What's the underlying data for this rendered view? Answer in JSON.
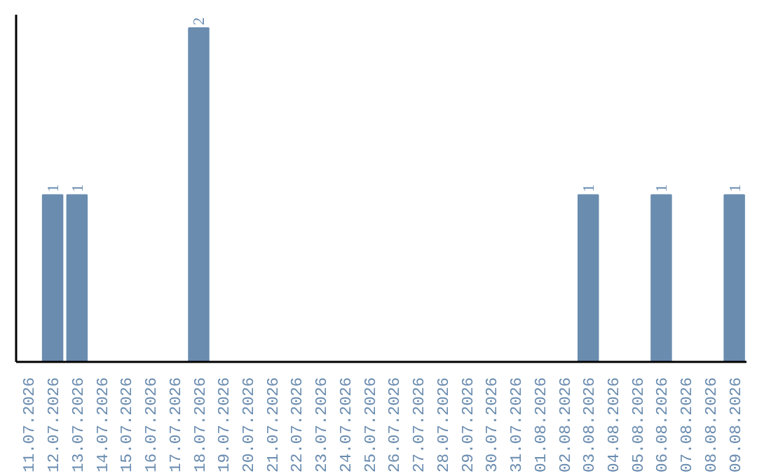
{
  "chart_data": {
    "type": "bar",
    "categories": [
      "11.07.2026",
      "12.07.2026",
      "13.07.2026",
      "14.07.2026",
      "15.07.2026",
      "16.07.2026",
      "17.07.2026",
      "18.07.2026",
      "19.07.2026",
      "20.07.2026",
      "21.07.2026",
      "22.07.2026",
      "23.07.2026",
      "24.07.2026",
      "25.07.2026",
      "26.07.2026",
      "27.07.2026",
      "28.07.2026",
      "29.07.2026",
      "30.07.2026",
      "31.07.2026",
      "01.08.2026",
      "02.08.2026",
      "03.08.2026",
      "04.08.2026",
      "05.08.2026",
      "06.08.2026",
      "07.08.2026",
      "08.08.2026",
      "09.08.2026"
    ],
    "values": [
      0,
      1,
      1,
      0,
      0,
      0,
      0,
      2,
      0,
      0,
      0,
      0,
      0,
      0,
      0,
      0,
      0,
      0,
      0,
      0,
      0,
      0,
      0,
      1,
      0,
      0,
      1,
      0,
      0,
      1
    ],
    "value_labels": [
      null,
      "1",
      "1",
      null,
      null,
      null,
      null,
      "2",
      null,
      null,
      null,
      null,
      null,
      null,
      null,
      null,
      null,
      null,
      null,
      null,
      null,
      null,
      null,
      "1",
      null,
      null,
      "1",
      null,
      null,
      "1"
    ],
    "color": "#6a8caf",
    "grid": false,
    "tick_labels": "x"
  }
}
